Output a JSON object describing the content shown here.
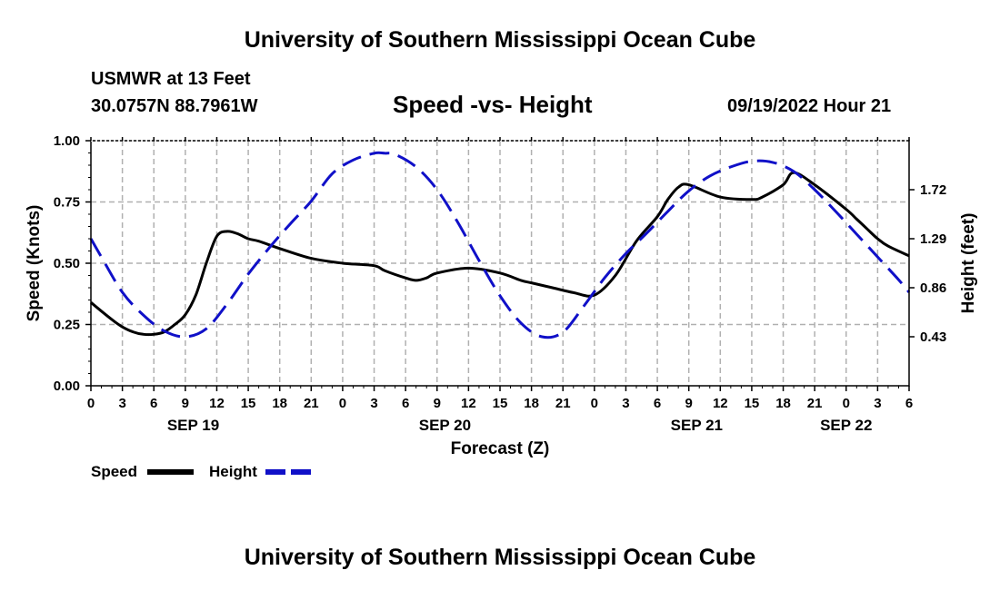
{
  "header": {
    "title_top": "University of Southern Mississippi Ocean Cube",
    "station": "USMWR at 13 Feet",
    "coords": "30.0757N  88.7961W",
    "subtitle": "Speed -vs- Height",
    "datetime": "09/19/2022 Hour 21",
    "title_bottom": "University of Southern Mississippi Ocean Cube"
  },
  "chart_data": {
    "type": "line",
    "title": "Speed -vs- Height",
    "xlabel": "Forecast (Z)",
    "ylabel_left": "Speed (Knots)",
    "ylabel_right": "Height (feet)",
    "x_unit": "hours since SEP 19 00Z",
    "xlim": [
      0,
      78
    ],
    "x_ticks": [
      0,
      3,
      6,
      9,
      12,
      15,
      18,
      21,
      24,
      27,
      30,
      33,
      36,
      39,
      42,
      45,
      48,
      51,
      54,
      57,
      60,
      63,
      66,
      69,
      72,
      75,
      78
    ],
    "x_tick_labels": [
      "0",
      "3",
      "6",
      "9",
      "12",
      "15",
      "18",
      "21",
      "0",
      "3",
      "6",
      "9",
      "12",
      "15",
      "18",
      "21",
      "0",
      "3",
      "6",
      "9",
      "12",
      "15",
      "18",
      "21",
      "0",
      "3",
      "6"
    ],
    "date_labels": [
      {
        "x": 9.75,
        "label": "SEP 19"
      },
      {
        "x": 33.75,
        "label": "SEP 20"
      },
      {
        "x": 57.75,
        "label": "SEP 21"
      },
      {
        "x": 72,
        "label": "SEP 22"
      }
    ],
    "ylim_left": [
      0,
      1
    ],
    "y_ticks_left": [
      "0.00",
      "0.25",
      "0.50",
      "0.75",
      "1.00"
    ],
    "ylim_right": [
      0,
      2.15
    ],
    "y_ticks_right": [
      0.43,
      0.86,
      1.29,
      1.72
    ],
    "y_tick_labels_right": [
      "0.43",
      "0.86",
      "1.29",
      "1.72"
    ],
    "grid": true,
    "legend": [
      {
        "name": "Speed",
        "color": "#000000",
        "dash": "solid"
      },
      {
        "name": "Height",
        "color": "#1010c8",
        "dash": "dashed"
      }
    ],
    "series": [
      {
        "name": "Speed",
        "axis": "left",
        "color": "#000000",
        "x": [
          0,
          2,
          3,
          4,
          5,
          6,
          7,
          8,
          9,
          10,
          11,
          12,
          13,
          14,
          15,
          16,
          18,
          21,
          24,
          27,
          28,
          30,
          31,
          32,
          33,
          36,
          39,
          41,
          42,
          44,
          46,
          48,
          50,
          52,
          54,
          55,
          56,
          57,
          60,
          63,
          64,
          66,
          67,
          69,
          72,
          73,
          74,
          75,
          76,
          78
        ],
        "values": [
          0.34,
          0.27,
          0.24,
          0.22,
          0.21,
          0.21,
          0.22,
          0.25,
          0.29,
          0.37,
          0.5,
          0.61,
          0.63,
          0.62,
          0.6,
          0.59,
          0.56,
          0.52,
          0.5,
          0.49,
          0.47,
          0.44,
          0.43,
          0.44,
          0.46,
          0.48,
          0.46,
          0.43,
          0.42,
          0.4,
          0.38,
          0.37,
          0.45,
          0.59,
          0.69,
          0.76,
          0.81,
          0.82,
          0.77,
          0.76,
          0.77,
          0.82,
          0.87,
          0.82,
          0.72,
          0.68,
          0.64,
          0.6,
          0.57,
          0.53
        ]
      },
      {
        "name": "Height",
        "axis": "right",
        "color": "#1010c8",
        "x": [
          0,
          1,
          3,
          5,
          7,
          9,
          11,
          13,
          15,
          17,
          19,
          21,
          23,
          25,
          27,
          28,
          29,
          31,
          33,
          35,
          37,
          39,
          41,
          43,
          45,
          47,
          49,
          51,
          53,
          55,
          57,
          59,
          61,
          63,
          65,
          67,
          69,
          71,
          73,
          75,
          77,
          78
        ],
        "values": [
          1.29,
          1.13,
          0.82,
          0.62,
          0.48,
          0.43,
          0.5,
          0.72,
          0.98,
          1.21,
          1.42,
          1.62,
          1.86,
          1.98,
          2.04,
          2.04,
          2.03,
          1.92,
          1.72,
          1.43,
          1.1,
          0.79,
          0.55,
          0.43,
          0.47,
          0.7,
          0.95,
          1.16,
          1.34,
          1.53,
          1.71,
          1.84,
          1.92,
          1.97,
          1.96,
          1.88,
          1.72,
          1.53,
          1.33,
          1.13,
          0.93,
          0.82
        ]
      }
    ]
  }
}
